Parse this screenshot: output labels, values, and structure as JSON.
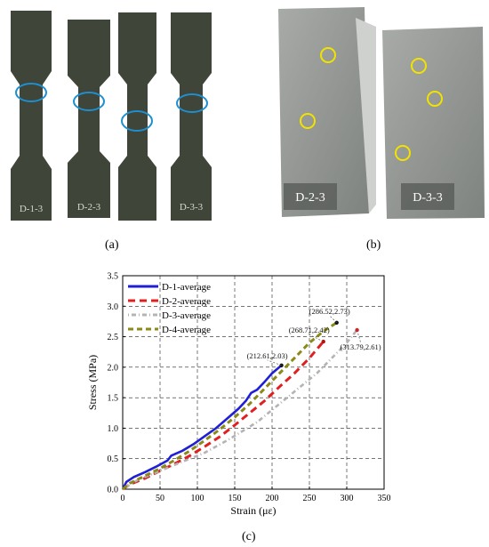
{
  "captions": {
    "a": "(a)",
    "b": "(b)",
    "c": "(c)"
  },
  "photo_a": {
    "specimen_labels": [
      "D-1-3",
      "D-2-3",
      "D-3-3"
    ]
  },
  "photo_b": {
    "labels": [
      "D-2-3",
      "D-3-3"
    ]
  },
  "chart_data": {
    "type": "line",
    "xlabel": "Strain (με)",
    "ylabel": "Stress (MPa)",
    "xlim": [
      0,
      350
    ],
    "ylim": [
      0,
      3.5
    ],
    "xticks": [
      "0",
      "50",
      "100",
      "150",
      "200",
      "250",
      "300",
      "350"
    ],
    "yticks": [
      "0.0",
      "0.5",
      "1.0",
      "1.5",
      "2.0",
      "2.5",
      "3.0",
      "3.5"
    ],
    "grid": true,
    "legend_position": "top-left",
    "series": [
      {
        "name": "D-1-average",
        "color": "#1f1fd6",
        "dash": "solid",
        "x": [
          0,
          5,
          15,
          30,
          45,
          60,
          65,
          80,
          95,
          110,
          125,
          140,
          155,
          165,
          172,
          180,
          190,
          200,
          212.61
        ],
        "y": [
          0,
          0.12,
          0.2,
          0.28,
          0.37,
          0.47,
          0.55,
          0.63,
          0.74,
          0.87,
          1.0,
          1.16,
          1.32,
          1.45,
          1.58,
          1.63,
          1.76,
          1.9,
          2.03
        ]
      },
      {
        "name": "D-2-average",
        "color": "#e02020",
        "dash": "8,5",
        "x": [
          0,
          10,
          30,
          50,
          70,
          90,
          110,
          130,
          150,
          160,
          175,
          190,
          210,
          230,
          250,
          268.71
        ],
        "y": [
          0,
          0.08,
          0.18,
          0.3,
          0.42,
          0.55,
          0.7,
          0.86,
          1.05,
          1.15,
          1.3,
          1.45,
          1.68,
          1.9,
          2.15,
          2.42
        ]
      },
      {
        "name": "D-3-average",
        "color": "#b4b4b4",
        "dash": "1,3,5,3",
        "x": [
          0,
          20,
          50,
          80,
          110,
          140,
          160,
          180,
          200,
          220,
          240,
          260,
          280,
          300,
          313.79
        ],
        "y": [
          0,
          0.15,
          0.3,
          0.45,
          0.6,
          0.8,
          0.95,
          1.1,
          1.3,
          1.5,
          1.7,
          1.9,
          2.15,
          2.4,
          2.61
        ]
      },
      {
        "name": "D-4-average",
        "color": "#8a8a1a",
        "dash": "6,4",
        "x": [
          0,
          10,
          30,
          50,
          70,
          90,
          110,
          130,
          150,
          170,
          190,
          210,
          230,
          250,
          270,
          286.52
        ],
        "y": [
          0,
          0.1,
          0.22,
          0.34,
          0.48,
          0.63,
          0.8,
          0.98,
          1.18,
          1.4,
          1.65,
          1.9,
          2.15,
          2.4,
          2.6,
          2.73
        ]
      }
    ],
    "annotations": [
      {
        "text": "(212.61,2.03)",
        "x": 212.61,
        "y": 2.03,
        "color": "#111111"
      },
      {
        "text": "(268.71,2.42)",
        "x": 268.71,
        "y": 2.42,
        "color": "#b01010"
      },
      {
        "text": "(286.52,2.73)",
        "x": 286.52,
        "y": 2.73,
        "color": "#111111"
      },
      {
        "text": "(313.79,2.61)",
        "x": 313.79,
        "y": 2.61,
        "color": "#e02020"
      }
    ]
  }
}
